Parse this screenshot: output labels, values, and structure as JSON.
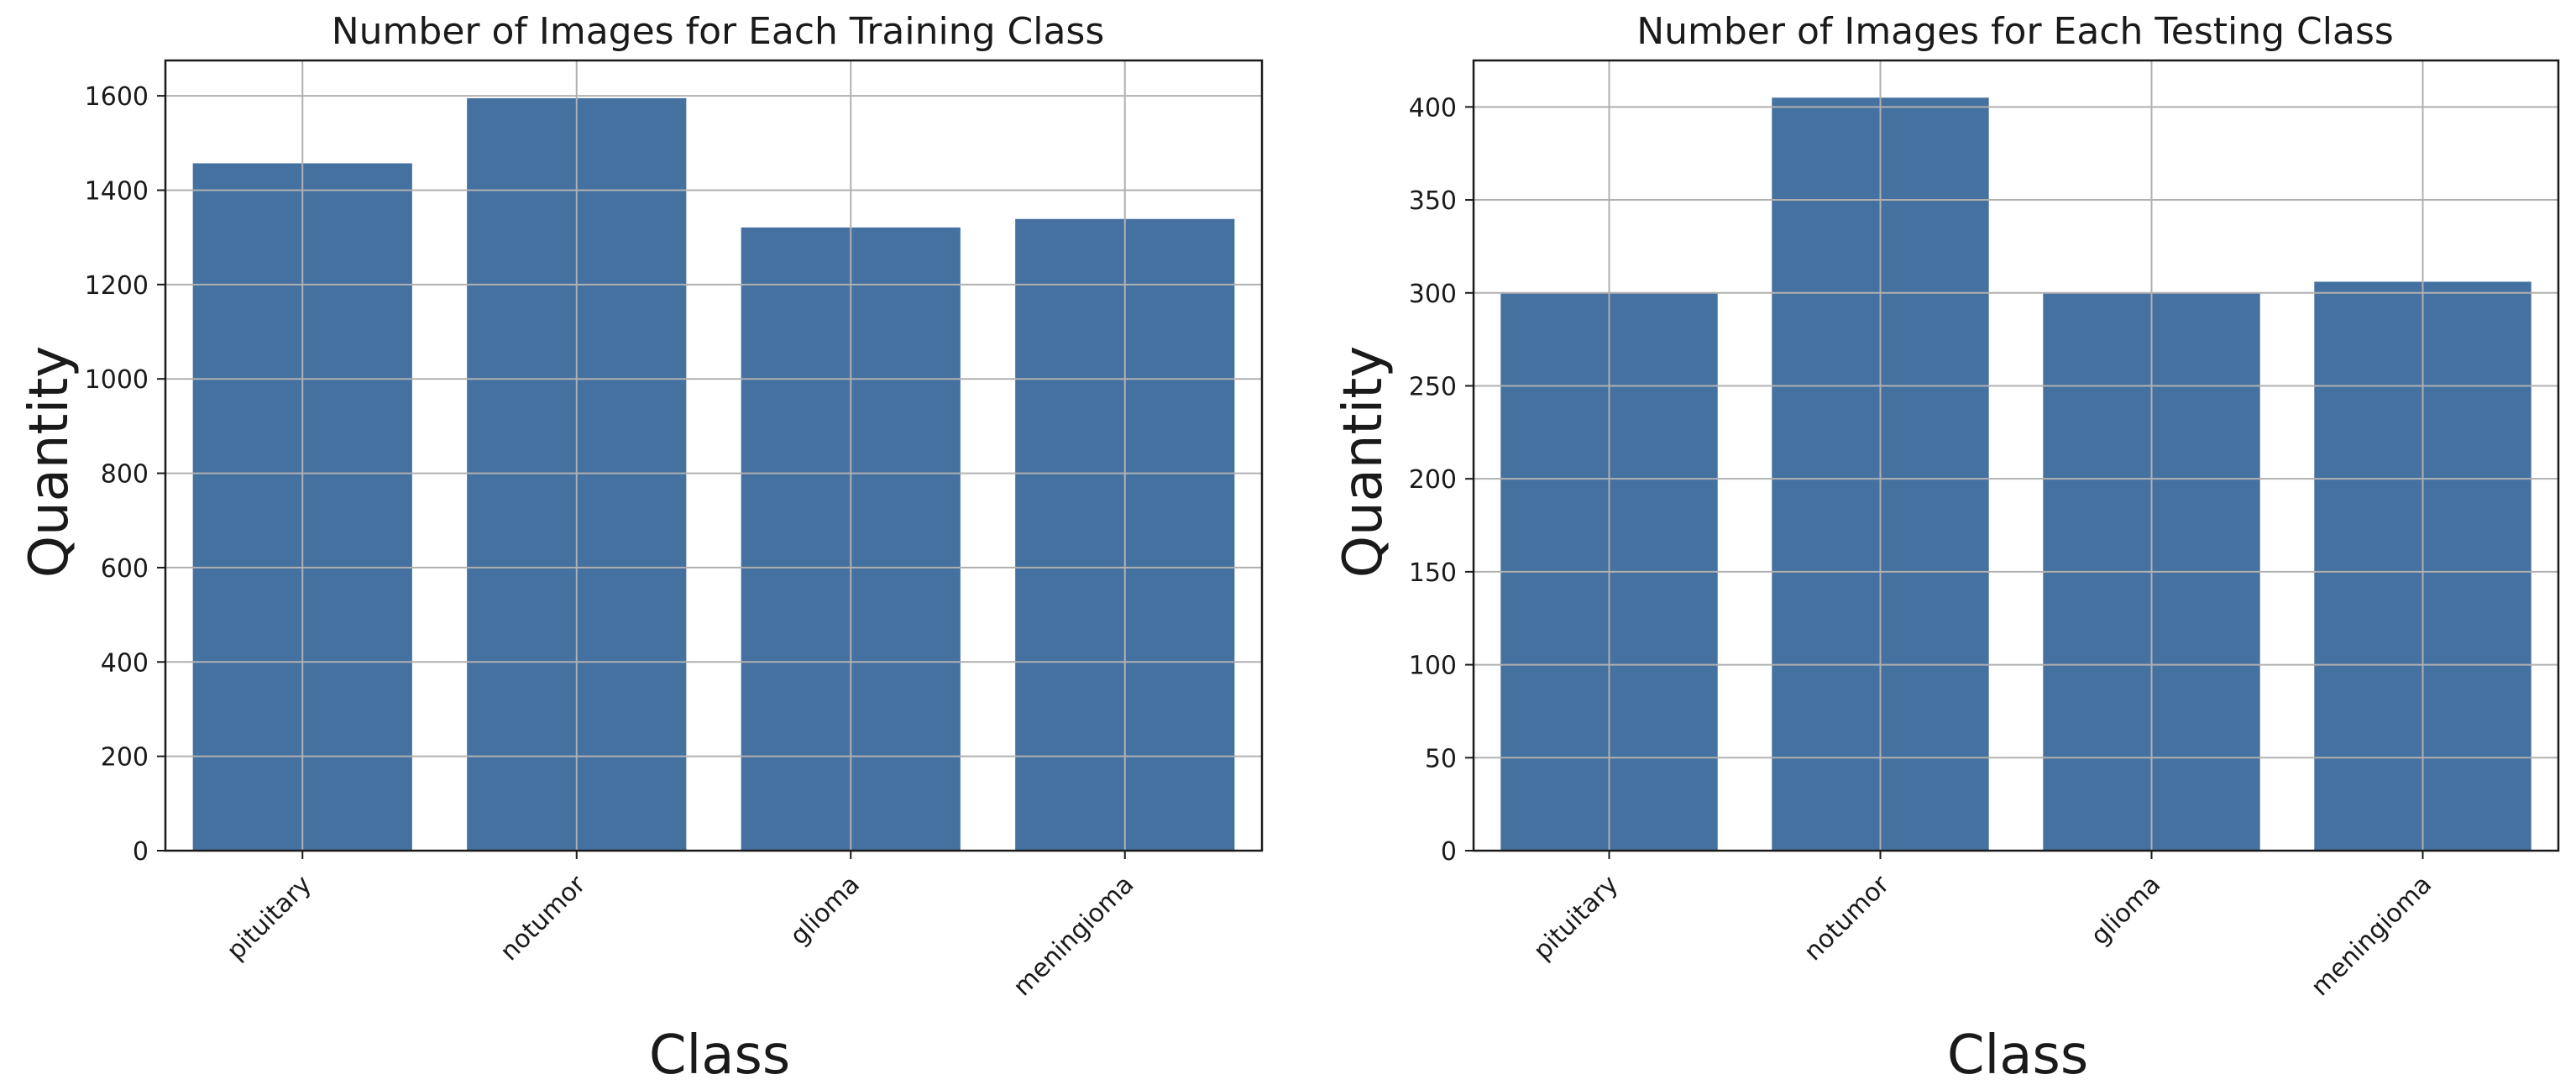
{
  "chart_data": [
    {
      "type": "bar",
      "title": "Number of Images for Each Training Class",
      "xlabel": "Class",
      "ylabel": "Quantity",
      "categories": [
        "pituitary",
        "notumor",
        "glioma",
        "meningioma"
      ],
      "values": [
        1457,
        1595,
        1321,
        1339
      ],
      "ylim": [
        0,
        1675
      ],
      "yticks": [
        0,
        200,
        400,
        600,
        800,
        1000,
        1200,
        1400,
        1600
      ],
      "grid": true,
      "bar_color": "#4571a0"
    },
    {
      "type": "bar",
      "title": "Number of Images for Each Testing Class",
      "xlabel": "Class",
      "ylabel": "Quantity",
      "categories": [
        "pituitary",
        "notumor",
        "glioma",
        "meningioma"
      ],
      "values": [
        300,
        405,
        300,
        306
      ],
      "ylim": [
        0,
        425
      ],
      "yticks": [
        0,
        50,
        100,
        150,
        200,
        250,
        300,
        350,
        400
      ],
      "grid": true,
      "bar_color": "#4571a0"
    }
  ]
}
